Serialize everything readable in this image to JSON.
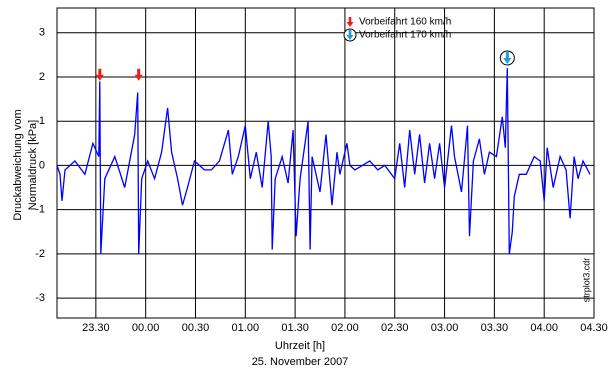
{
  "chart_data": {
    "type": "line",
    "ylabel": [
      "Druckabweichung vom",
      "Normaldruck [kPa]"
    ],
    "xlabel": "Uhrzeit [h]",
    "subtitle": "25. November 2007",
    "note": "strplot3.cdr",
    "color": "#0000ff",
    "grid": true,
    "xlim": [
      23.11,
      28.5
    ],
    "ylim": [
      -3.45,
      3.56
    ],
    "yticks": [
      -3,
      -2,
      -1,
      0,
      1,
      2,
      3
    ],
    "xticks": [
      {
        "value": 23.5,
        "label": "23.30"
      },
      {
        "value": 24,
        "label": "00.00"
      },
      {
        "value": 24.5,
        "label": "00.30"
      },
      {
        "value": 25,
        "label": "01.00"
      },
      {
        "value": 25.5,
        "label": "01.30"
      },
      {
        "value": 26,
        "label": "02.00"
      },
      {
        "value": 26.5,
        "label": "02.30"
      },
      {
        "value": 27,
        "label": "03.00"
      },
      {
        "value": 27.5,
        "label": "03.30"
      },
      {
        "value": 28,
        "label": "04.00"
      },
      {
        "value": 28.5,
        "label": "04.30"
      }
    ],
    "x": [
      23.11,
      23.14,
      23.16,
      23.19,
      23.29,
      23.39,
      23.47,
      23.53,
      23.54,
      23.55,
      23.59,
      23.69,
      23.79,
      23.89,
      23.92,
      23.93,
      23.96,
      24.02,
      24.09,
      24.16,
      24.22,
      24.26,
      24.32,
      24.37,
      24.42,
      24.49,
      24.59,
      24.66,
      24.74,
      24.83,
      24.87,
      24.93,
      25.0,
      25.05,
      25.11,
      25.17,
      25.23,
      25.26,
      25.27,
      25.3,
      25.37,
      25.43,
      25.48,
      25.51,
      25.55,
      25.63,
      25.65,
      25.67,
      25.75,
      25.81,
      25.87,
      25.92,
      25.95,
      26.02,
      26.05,
      26.1,
      26.25,
      26.33,
      26.4,
      26.5,
      26.55,
      26.6,
      26.65,
      26.7,
      26.75,
      26.8,
      26.85,
      26.9,
      26.95,
      27.0,
      27.07,
      27.1,
      27.17,
      27.23,
      27.25,
      27.29,
      27.35,
      27.4,
      27.45,
      27.52,
      27.58,
      27.61,
      27.63,
      27.65,
      27.68,
      27.7,
      27.75,
      27.82,
      27.9,
      27.96,
      28.0,
      28.03,
      28.09,
      28.16,
      28.22,
      28.26,
      28.3,
      28.34,
      28.39,
      28.46
    ],
    "values": [
      0,
      -0.2,
      -0.8,
      -0.1,
      0.1,
      -0.2,
      0.5,
      0.2,
      1.9,
      -2.0,
      -0.3,
      0.2,
      -0.5,
      0.7,
      1.65,
      -2.0,
      -0.3,
      0.1,
      -0.3,
      0.3,
      1.3,
      0.3,
      -0.3,
      -0.9,
      -0.5,
      0.1,
      -0.1,
      -0.1,
      0.1,
      0.8,
      -0.2,
      0.2,
      0.9,
      -0.3,
      0.3,
      -0.5,
      1.0,
      0.2,
      -1.9,
      -0.3,
      0.2,
      -0.4,
      0.8,
      -1.6,
      -0.3,
      1.0,
      -1.9,
      0.2,
      -0.6,
      0.7,
      -0.9,
      0.3,
      -0.2,
      0.5,
      0,
      -0.1,
      0.1,
      -0.1,
      0,
      -0.3,
      0.5,
      -0.5,
      0.8,
      -0.2,
      0.7,
      -0.4,
      0.5,
      -0.3,
      0.5,
      -0.5,
      0.9,
      0.2,
      -0.6,
      0.9,
      -1.6,
      0.1,
      0.6,
      -0.2,
      0.3,
      0.2,
      1.1,
      0.4,
      2.2,
      -2.0,
      -1.5,
      -0.7,
      -0.2,
      -0.2,
      0.2,
      0.1,
      -0.8,
      0.4,
      -0.5,
      0.2,
      -0.1,
      -1.2,
      0.2,
      -0.3,
      0.1,
      -0.2
    ],
    "annotations": [
      {
        "text": "Vorbeifahrt 160 km/h",
        "color": "#e8201a",
        "y": 2.05,
        "x": [
          23.54,
          23.93
        ]
      },
      {
        "text": "Vorbeifahrt 170 km/h",
        "color": "#1a9ee0",
        "y": 2.43,
        "x": [
          27.63
        ]
      }
    ]
  }
}
